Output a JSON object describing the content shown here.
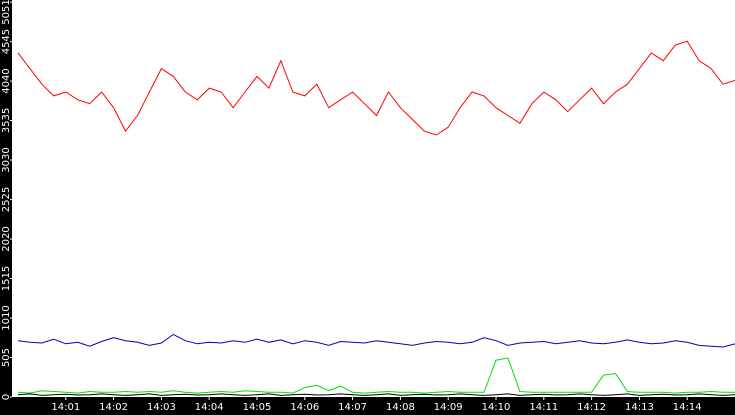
{
  "chart_data": {
    "type": "line",
    "categories": [
      null,
      null,
      null,
      null,
      "14:01",
      null,
      null,
      null,
      "14:02",
      null,
      null,
      null,
      "14:03",
      null,
      null,
      null,
      "14:04",
      null,
      null,
      null,
      "14:05",
      null,
      null,
      null,
      "14:06",
      null,
      null,
      null,
      "14:07",
      null,
      null,
      null,
      "14:08",
      null,
      null,
      null,
      "14:09",
      null,
      null,
      null,
      "14:10",
      null,
      null,
      null,
      "14:11",
      null,
      null,
      null,
      "14:12",
      null,
      null,
      null,
      "14:13",
      null,
      null,
      null,
      "14:14",
      null,
      null,
      null,
      null
    ],
    "ylim": [
      0,
      5051
    ],
    "yticks": [
      0,
      505,
      1010,
      1515,
      2020,
      2525,
      3030,
      3535,
      4040,
      4545,
      5051
    ],
    "series": [
      {
        "color": "#ff0000",
        "values": [
          4400,
          4200,
          4000,
          3850,
          3900,
          3800,
          3750,
          3900,
          3700,
          3400,
          3600,
          3900,
          4200,
          4100,
          3900,
          3800,
          3950,
          3900,
          3700,
          3900,
          4100,
          3950,
          4300,
          3900,
          3850,
          4000,
          3700,
          3800,
          3900,
          3750,
          3600,
          3900,
          3700,
          3550,
          3400,
          3350,
          3450,
          3700,
          3900,
          3850,
          3700,
          3600,
          3500,
          3750,
          3900,
          3800,
          3650,
          3800,
          3950,
          3750,
          3900,
          4000,
          4200,
          4400,
          4300,
          4500,
          4550,
          4300,
          4200,
          4000,
          4050
        ]
      },
      {
        "color": "#0000c0",
        "values": [
          720,
          700,
          690,
          740,
          680,
          700,
          650,
          710,
          760,
          720,
          700,
          660,
          690,
          800,
          720,
          680,
          700,
          690,
          720,
          700,
          740,
          700,
          730,
          680,
          720,
          700,
          660,
          710,
          700,
          690,
          720,
          700,
          680,
          660,
          690,
          710,
          700,
          680,
          700,
          760,
          720,
          660,
          690,
          700,
          710,
          680,
          700,
          720,
          690,
          680,
          700,
          730,
          700,
          680,
          690,
          720,
          700,
          660,
          650,
          640,
          680
        ]
      },
      {
        "color": "#00e000",
        "values": [
          60,
          50,
          80,
          70,
          60,
          50,
          70,
          60,
          60,
          70,
          60,
          70,
          60,
          80,
          60,
          50,
          60,
          70,
          60,
          80,
          70,
          60,
          60,
          50,
          120,
          150,
          80,
          140,
          60,
          50,
          60,
          70,
          60,
          60,
          50,
          60,
          70,
          60,
          60,
          60,
          470,
          500,
          70,
          60,
          60,
          60,
          60,
          60,
          60,
          280,
          300,
          70,
          60,
          60,
          60,
          50,
          60,
          60,
          70,
          60,
          60
        ]
      },
      {
        "color": "#000000",
        "values": [
          30,
          40,
          20,
          30,
          35,
          25,
          30,
          40,
          30,
          20,
          30,
          40,
          20,
          30,
          35,
          25,
          30,
          40,
          30,
          20,
          30,
          40,
          20,
          30,
          35,
          25,
          30,
          40,
          30,
          20,
          30,
          40,
          20,
          30,
          35,
          25,
          30,
          40,
          30,
          20,
          30,
          40,
          20,
          30,
          35,
          25,
          30,
          40,
          30,
          20,
          30,
          40,
          20,
          30,
          35,
          25,
          30,
          40,
          30,
          20,
          30
        ]
      }
    ]
  }
}
